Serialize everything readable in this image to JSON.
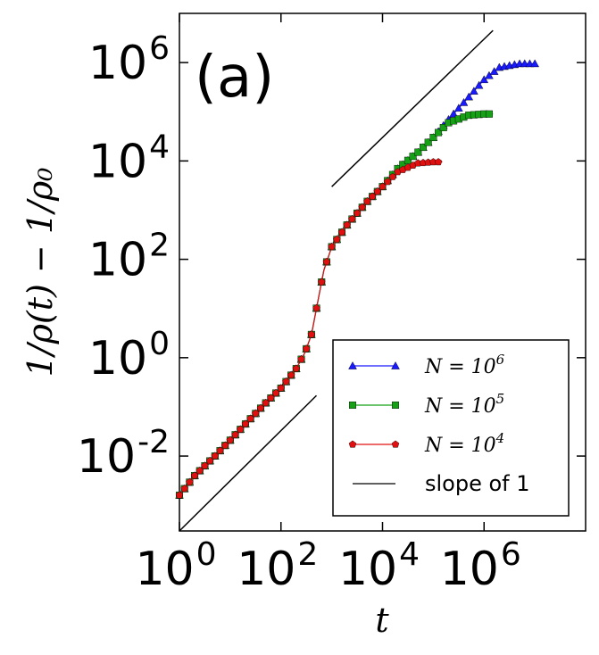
{
  "chart_data": {
    "type": "line",
    "scale": "log-log",
    "panel_label": "(a)",
    "xlabel": "t",
    "ylabel": "1/ρ(t) − 1/ρ₀",
    "xlim": [
      1,
      100000000.0
    ],
    "ylim": [
      0.0003,
      10000000.0
    ],
    "x_ticks": [
      {
        "value": 1,
        "base": "10",
        "exp": "0"
      },
      {
        "value": 100,
        "base": "10",
        "exp": "2"
      },
      {
        "value": 10000,
        "base": "10",
        "exp": "4"
      },
      {
        "value": 1000000,
        "base": "10",
        "exp": "6"
      }
    ],
    "y_ticks": [
      {
        "value": 0.01,
        "base": "10",
        "exp": "-2"
      },
      {
        "value": 1,
        "base": "10",
        "exp": "0"
      },
      {
        "value": 100,
        "base": "10",
        "exp": "2"
      },
      {
        "value": 10000,
        "base": "10",
        "exp": "4"
      },
      {
        "value": 1000000,
        "base": "10",
        "exp": "6"
      }
    ],
    "legend_position": "bottom-right",
    "series": [
      {
        "name": "N = 10^6",
        "label_base": "N = 10",
        "label_exp": "6",
        "color": "#1a1aff",
        "marker": "triangle",
        "points": [
          [
            1,
            0.0016
          ],
          [
            2,
            0.004
          ],
          [
            5,
            0.01
          ],
          [
            10,
            0.021
          ],
          [
            20,
            0.045
          ],
          [
            50,
            0.12
          ],
          [
            100,
            0.24
          ],
          [
            200,
            0.6
          ],
          [
            300,
            1.3
          ],
          [
            400,
            3
          ],
          [
            500,
            10
          ],
          [
            700,
            60
          ],
          [
            1000,
            180
          ],
          [
            2000,
            500
          ],
          [
            5000,
            1500
          ],
          [
            10000,
            3000
          ],
          [
            20000,
            7000
          ],
          [
            50000,
            15000
          ],
          [
            100000,
            30000
          ],
          [
            200000,
            70000
          ],
          [
            500000,
            200000
          ],
          [
            1000000,
            450000
          ],
          [
            2000000,
            800000
          ],
          [
            5000000,
            950000
          ],
          [
            10000000,
            950000
          ]
        ]
      },
      {
        "name": "N = 10^5",
        "label_base": "N = 10",
        "label_exp": "5",
        "color": "#15a015",
        "marker": "square",
        "points": [
          [
            1,
            0.0016
          ],
          [
            2,
            0.004
          ],
          [
            5,
            0.01
          ],
          [
            10,
            0.021
          ],
          [
            20,
            0.045
          ],
          [
            50,
            0.12
          ],
          [
            100,
            0.24
          ],
          [
            200,
            0.6
          ],
          [
            300,
            1.3
          ],
          [
            400,
            3
          ],
          [
            500,
            10
          ],
          [
            700,
            60
          ],
          [
            1000,
            180
          ],
          [
            2000,
            500
          ],
          [
            5000,
            1500
          ],
          [
            10000,
            3000
          ],
          [
            20000,
            7000
          ],
          [
            50000,
            15000
          ],
          [
            100000,
            30000
          ],
          [
            200000,
            60000
          ],
          [
            500000,
            85000
          ],
          [
            1000000,
            90000
          ],
          [
            1500000,
            90000
          ]
        ]
      },
      {
        "name": "N = 10^4",
        "label_base": "N = 10",
        "label_exp": "4",
        "color": "#e01010",
        "marker": "pentagon",
        "points": [
          [
            1,
            0.0016
          ],
          [
            2,
            0.004
          ],
          [
            5,
            0.01
          ],
          [
            10,
            0.021
          ],
          [
            20,
            0.045
          ],
          [
            50,
            0.12
          ],
          [
            100,
            0.24
          ],
          [
            200,
            0.6
          ],
          [
            300,
            1.3
          ],
          [
            400,
            3
          ],
          [
            500,
            10
          ],
          [
            700,
            60
          ],
          [
            1000,
            180
          ],
          [
            2000,
            500
          ],
          [
            5000,
            1500
          ],
          [
            10000,
            3000
          ],
          [
            20000,
            6000
          ],
          [
            50000,
            9000
          ],
          [
            100000,
            9500
          ],
          [
            150000,
            9500
          ]
        ]
      }
    ],
    "reference_lines": [
      {
        "name": "slope of 1",
        "label": "slope of 1",
        "color": "#000000",
        "segments": [
          [
            [
              1,
              0.0003
            ],
            [
              500,
              0.17
            ]
          ],
          [
            [
              1000,
              3000
            ],
            [
              1500000,
              4500000
            ]
          ]
        ]
      }
    ]
  }
}
